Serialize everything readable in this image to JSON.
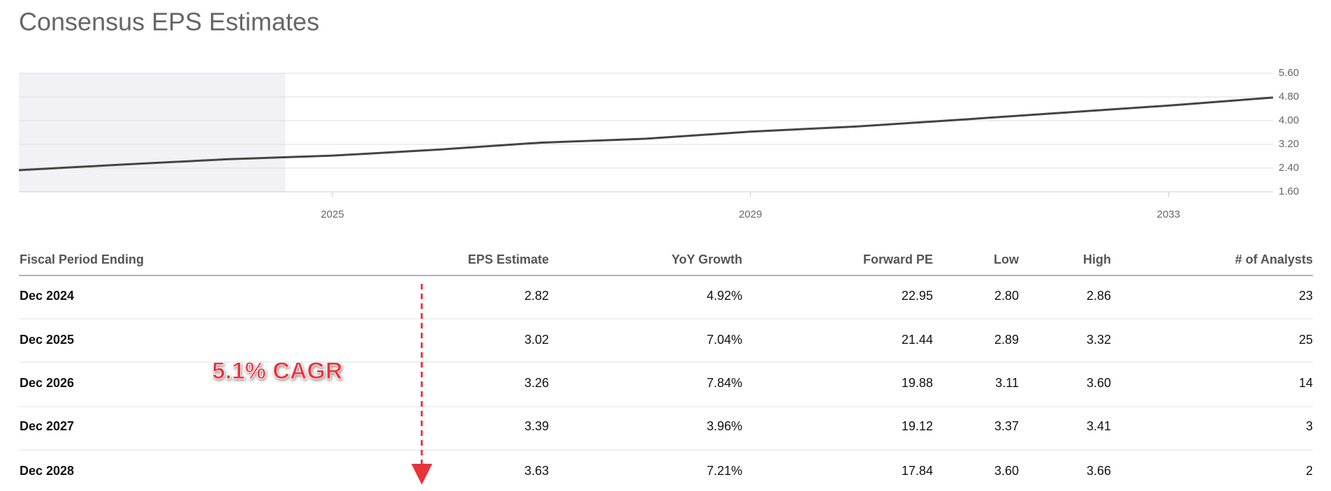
{
  "header": {
    "title": "Consensus EPS Estimates"
  },
  "chart_data": {
    "type": "line",
    "x": [
      2022,
      2023,
      2024,
      2025,
      2026,
      2027,
      2028,
      2029,
      2030,
      2031,
      2032,
      2033,
      2034
    ],
    "series": [
      {
        "name": "EPS",
        "color": "#444444",
        "values": [
          2.33,
          2.52,
          2.7,
          2.82,
          3.02,
          3.26,
          3.39,
          3.63,
          3.8,
          4.03,
          4.27,
          4.51,
          4.78
        ]
      }
    ],
    "xlim": [
      2022,
      2034
    ],
    "xticks": [
      2025,
      2029,
      2033
    ],
    "ylim": [
      1.6,
      5.6
    ],
    "yticks": [
      {
        "value": 1.6,
        "label": "1.60"
      },
      {
        "value": 2.4,
        "label": "2.40"
      },
      {
        "value": 3.2,
        "label": "3.20"
      },
      {
        "value": 4.0,
        "label": "4.00"
      },
      {
        "value": 4.8,
        "label": "4.80"
      },
      {
        "value": 5.6,
        "label": "5.60"
      }
    ],
    "shaded_xlim": [
      2022,
      2024.55
    ],
    "grid": true
  },
  "table": {
    "columns": [
      "Fiscal Period Ending",
      "EPS Estimate",
      "YoY Growth",
      "Forward PE",
      "Low",
      "High",
      "# of Analysts"
    ],
    "rows": [
      [
        "Dec 2024",
        "2.82",
        "4.92%",
        "22.95",
        "2.80",
        "2.86",
        "23"
      ],
      [
        "Dec 2025",
        "3.02",
        "7.04%",
        "21.44",
        "2.89",
        "3.32",
        "25"
      ],
      [
        "Dec 2026",
        "3.26",
        "7.84%",
        "19.88",
        "3.11",
        "3.60",
        "14"
      ],
      [
        "Dec 2027",
        "3.39",
        "3.96%",
        "19.12",
        "3.37",
        "3.41",
        "3"
      ],
      [
        "Dec 2028",
        "3.63",
        "7.21%",
        "17.84",
        "3.60",
        "3.66",
        "2"
      ]
    ]
  },
  "annotation": "5.1% CAGR"
}
